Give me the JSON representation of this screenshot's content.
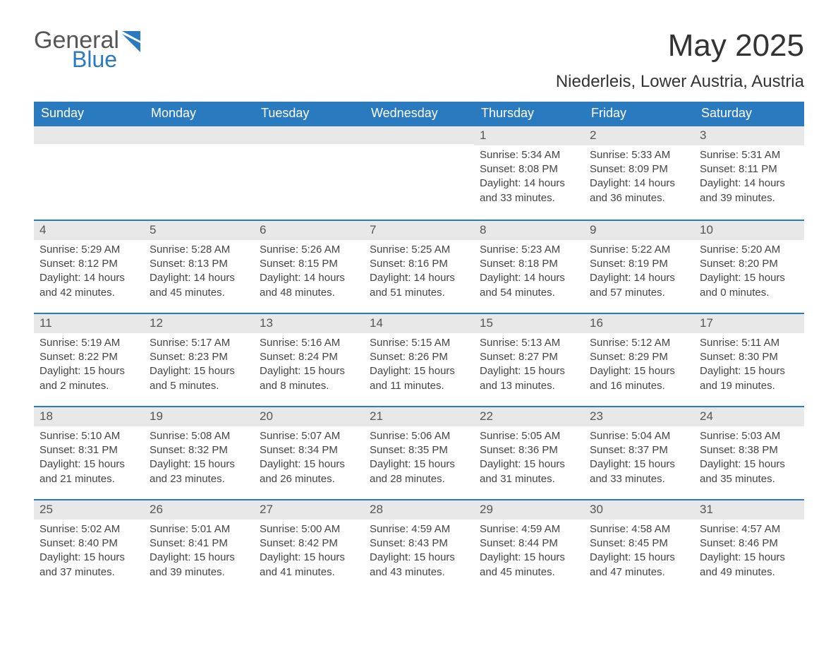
{
  "logo": {
    "general": "General",
    "blue": "Blue"
  },
  "title": "May 2025",
  "location": "Niederleis, Lower Austria, Austria",
  "colors": {
    "accent": "#2a7ac0",
    "stripe": "#e8e8e8",
    "text": "#444444",
    "background": "#ffffff"
  },
  "dow": [
    "Sunday",
    "Monday",
    "Tuesday",
    "Wednesday",
    "Thursday",
    "Friday",
    "Saturday"
  ],
  "weeks": [
    [
      null,
      null,
      null,
      null,
      {
        "n": "1",
        "sr": "5:34 AM",
        "ss": "8:08 PM",
        "dh": "14",
        "dm": "33"
      },
      {
        "n": "2",
        "sr": "5:33 AM",
        "ss": "8:09 PM",
        "dh": "14",
        "dm": "36"
      },
      {
        "n": "3",
        "sr": "5:31 AM",
        "ss": "8:11 PM",
        "dh": "14",
        "dm": "39"
      }
    ],
    [
      {
        "n": "4",
        "sr": "5:29 AM",
        "ss": "8:12 PM",
        "dh": "14",
        "dm": "42"
      },
      {
        "n": "5",
        "sr": "5:28 AM",
        "ss": "8:13 PM",
        "dh": "14",
        "dm": "45"
      },
      {
        "n": "6",
        "sr": "5:26 AM",
        "ss": "8:15 PM",
        "dh": "14",
        "dm": "48"
      },
      {
        "n": "7",
        "sr": "5:25 AM",
        "ss": "8:16 PM",
        "dh": "14",
        "dm": "51"
      },
      {
        "n": "8",
        "sr": "5:23 AM",
        "ss": "8:18 PM",
        "dh": "14",
        "dm": "54"
      },
      {
        "n": "9",
        "sr": "5:22 AM",
        "ss": "8:19 PM",
        "dh": "14",
        "dm": "57"
      },
      {
        "n": "10",
        "sr": "5:20 AM",
        "ss": "8:20 PM",
        "dh": "15",
        "dm": "0"
      }
    ],
    [
      {
        "n": "11",
        "sr": "5:19 AM",
        "ss": "8:22 PM",
        "dh": "15",
        "dm": "2"
      },
      {
        "n": "12",
        "sr": "5:17 AM",
        "ss": "8:23 PM",
        "dh": "15",
        "dm": "5"
      },
      {
        "n": "13",
        "sr": "5:16 AM",
        "ss": "8:24 PM",
        "dh": "15",
        "dm": "8"
      },
      {
        "n": "14",
        "sr": "5:15 AM",
        "ss": "8:26 PM",
        "dh": "15",
        "dm": "11"
      },
      {
        "n": "15",
        "sr": "5:13 AM",
        "ss": "8:27 PM",
        "dh": "15",
        "dm": "13"
      },
      {
        "n": "16",
        "sr": "5:12 AM",
        "ss": "8:29 PM",
        "dh": "15",
        "dm": "16"
      },
      {
        "n": "17",
        "sr": "5:11 AM",
        "ss": "8:30 PM",
        "dh": "15",
        "dm": "19"
      }
    ],
    [
      {
        "n": "18",
        "sr": "5:10 AM",
        "ss": "8:31 PM",
        "dh": "15",
        "dm": "21"
      },
      {
        "n": "19",
        "sr": "5:08 AM",
        "ss": "8:32 PM",
        "dh": "15",
        "dm": "23"
      },
      {
        "n": "20",
        "sr": "5:07 AM",
        "ss": "8:34 PM",
        "dh": "15",
        "dm": "26"
      },
      {
        "n": "21",
        "sr": "5:06 AM",
        "ss": "8:35 PM",
        "dh": "15",
        "dm": "28"
      },
      {
        "n": "22",
        "sr": "5:05 AM",
        "ss": "8:36 PM",
        "dh": "15",
        "dm": "31"
      },
      {
        "n": "23",
        "sr": "5:04 AM",
        "ss": "8:37 PM",
        "dh": "15",
        "dm": "33"
      },
      {
        "n": "24",
        "sr": "5:03 AM",
        "ss": "8:38 PM",
        "dh": "15",
        "dm": "35"
      }
    ],
    [
      {
        "n": "25",
        "sr": "5:02 AM",
        "ss": "8:40 PM",
        "dh": "15",
        "dm": "37"
      },
      {
        "n": "26",
        "sr": "5:01 AM",
        "ss": "8:41 PM",
        "dh": "15",
        "dm": "39"
      },
      {
        "n": "27",
        "sr": "5:00 AM",
        "ss": "8:42 PM",
        "dh": "15",
        "dm": "41"
      },
      {
        "n": "28",
        "sr": "4:59 AM",
        "ss": "8:43 PM",
        "dh": "15",
        "dm": "43"
      },
      {
        "n": "29",
        "sr": "4:59 AM",
        "ss": "8:44 PM",
        "dh": "15",
        "dm": "45"
      },
      {
        "n": "30",
        "sr": "4:58 AM",
        "ss": "8:45 PM",
        "dh": "15",
        "dm": "47"
      },
      {
        "n": "31",
        "sr": "4:57 AM",
        "ss": "8:46 PM",
        "dh": "15",
        "dm": "49"
      }
    ]
  ],
  "labels": {
    "sunrise": "Sunrise: ",
    "sunset": "Sunset: ",
    "daylight_a": "Daylight: ",
    "daylight_b": " hours and ",
    "daylight_c": " minutes."
  }
}
